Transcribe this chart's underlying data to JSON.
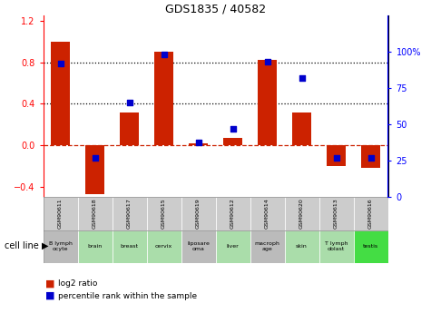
{
  "title": "GDS1835 / 40582",
  "gsm_labels": [
    "GSM90611",
    "GSM90618",
    "GSM90617",
    "GSM90615",
    "GSM90619",
    "GSM90612",
    "GSM90614",
    "GSM90620",
    "GSM90613",
    "GSM90616"
  ],
  "cell_lines": [
    "B lymph\nocyte",
    "brain",
    "breast",
    "cervix",
    "liposare\noma",
    "liver",
    "macroph\nage",
    "skin",
    "T lymph\noblast",
    "testis"
  ],
  "log2_ratio": [
    1.0,
    -0.47,
    0.32,
    0.9,
    0.02,
    0.07,
    0.82,
    0.32,
    -0.2,
    -0.22
  ],
  "percentile_rank": [
    92,
    27,
    65,
    98,
    38,
    47,
    93,
    82,
    27,
    27
  ],
  "bar_color": "#cc2200",
  "dot_color": "#0000cc",
  "ylim_left": [
    -0.5,
    1.25
  ],
  "ylim_right": [
    0,
    125
  ],
  "yticks_left": [
    -0.4,
    0.0,
    0.4,
    0.8,
    1.2
  ],
  "yticks_right": [
    0,
    25,
    50,
    75,
    100
  ],
  "ytick_labels_right": [
    "0",
    "25",
    "50",
    "75",
    "100%"
  ],
  "dotted_line_vals": [
    0.4,
    0.8
  ],
  "cell_line_bg_colors": [
    "#bbbbbb",
    "#aaddaa",
    "#aaddaa",
    "#aaddaa",
    "#bbbbbb",
    "#aaddaa",
    "#bbbbbb",
    "#aaddaa",
    "#aaddaa",
    "#44dd44"
  ],
  "gsm_bg_colors": [
    "#cccccc",
    "#cccccc",
    "#cccccc",
    "#cccccc",
    "#cccccc",
    "#cccccc",
    "#cccccc",
    "#cccccc",
    "#cccccc",
    "#cccccc"
  ],
  "legend_items": [
    "log2 ratio",
    "percentile rank within the sample"
  ]
}
